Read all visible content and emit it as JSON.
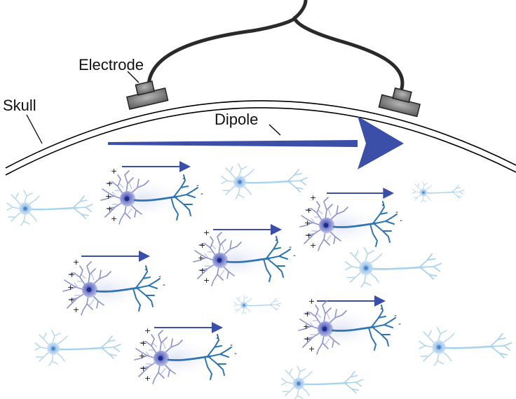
{
  "labels": {
    "electrode": "Electrode",
    "skull": "Skull",
    "dipole": "Dipole"
  },
  "signs": {
    "positive": "+",
    "negative": "-"
  },
  "colors": {
    "arrow": "#3b4fa8",
    "neuron_active_soma": "#8a8fcc",
    "neuron_active_axon": "#2f74b3",
    "neuron_inactive": "#9ccbe6",
    "electrode": "#6c6c6c",
    "wire": "#2a2a2a",
    "skull_line": "#000000"
  },
  "icons": {
    "electrode": "electrode-icon",
    "active_neuron": "pyramidal-neuron-icon",
    "inactive_neuron": "faded-neuron-icon",
    "dipole_arrow": "arrow-right-icon"
  }
}
